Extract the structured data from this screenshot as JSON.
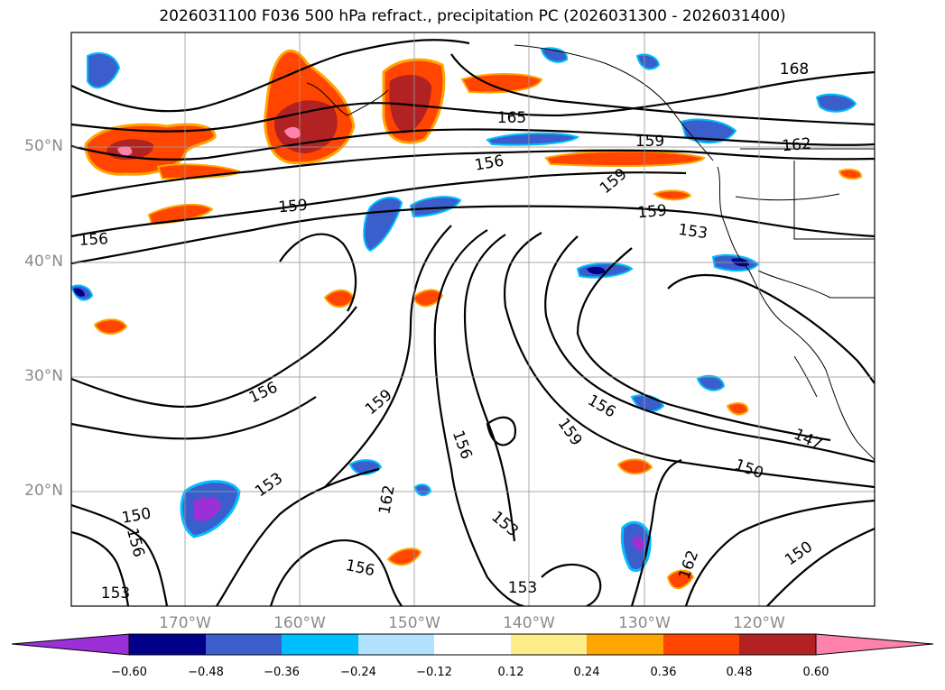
{
  "title": "2026031100 F036 500 hPa refract., precipitation PC (2026031300 - 2026031400)",
  "lat_labels": [
    "50°N",
    "40°N",
    "30°N",
    "20°N"
  ],
  "lon_labels": [
    "170°W",
    "160°W",
    "150°W",
    "140°W",
    "130°W",
    "120°W"
  ],
  "contour_labels": [
    "168",
    "165",
    "162",
    "159",
    "159",
    "159",
    "156",
    "156",
    "159",
    "153",
    "156",
    "159",
    "156",
    "153",
    "150",
    "156",
    "162",
    "156",
    "159",
    "153",
    "153",
    "147",
    "150",
    "150",
    "162",
    "153",
    "156"
  ],
  "colorbar": {
    "ticks": [
      "−0.60",
      "−0.48",
      "−0.36",
      "−0.24",
      "−0.12",
      "0.12",
      "0.24",
      "0.36",
      "0.48",
      "0.60"
    ],
    "colors": [
      "#9b30d9",
      "#00008b",
      "#3a5fcd",
      "#00bfff",
      "#b0e2ff",
      "#ffffff",
      "#ffec8b",
      "#ffa500",
      "#ff4500",
      "#b22222",
      "#ff82ab"
    ]
  },
  "map": {
    "lat_range": [
      10,
      60
    ],
    "lon_range": [
      -180,
      -110
    ],
    "contour_interval": 3,
    "shading_field": "precipitation PC",
    "contour_field": "500 hPa refract."
  }
}
